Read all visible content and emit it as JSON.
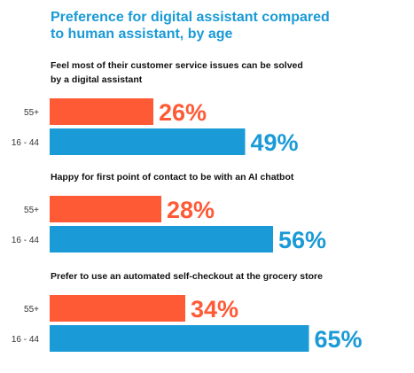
{
  "colors": {
    "title": "#1a9ad6",
    "group1": "#ff5a36",
    "group2": "#1a9ad6",
    "question": "#111111",
    "category": "#333333"
  },
  "chart_data": {
    "type": "bar",
    "orientation": "horizontal",
    "title_lines": [
      "Preference for digital assistant compared",
      "to human assistant, by age"
    ],
    "categories": [
      "55+",
      "16 - 44"
    ],
    "value_suffix": "%",
    "xlim": [
      0,
      100
    ],
    "groups": [
      {
        "question_lines": [
          "Feel most of their customer service issues can be solved",
          "by a digital assistant"
        ],
        "values": [
          26,
          49
        ]
      },
      {
        "question_lines": [
          "Happy for first point of contact to be with an AI chatbot"
        ],
        "values": [
          28,
          56
        ]
      },
      {
        "question_lines": [
          "Prefer to use an automated self-checkout at the grocery store"
        ],
        "values": [
          34,
          65
        ]
      }
    ]
  }
}
